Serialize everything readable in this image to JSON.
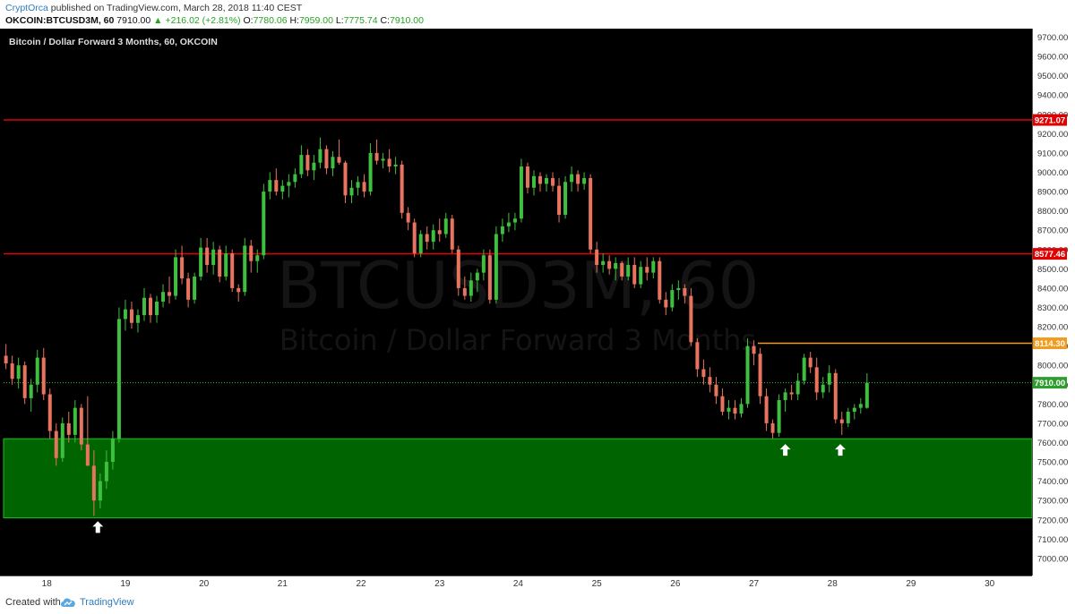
{
  "header": {
    "author": "CryptOrca",
    "published_text": "published on TradingView.com, March 28, 2018 11:40 CEST",
    "symbol": "OKCOIN:BTCUSD3M, 60",
    "last": "7910.00",
    "change": "+216.02 (+2.81%)",
    "o_label": "O:",
    "o_value": "7780.06",
    "h_label": "H:",
    "h_value": "7959.00",
    "l_label": "L:",
    "l_value": "7775.74",
    "c_label": "C:",
    "c_value": "7910.00"
  },
  "footer": {
    "created_label": "Created with",
    "brand": "TradingView"
  },
  "colors": {
    "up": "#3fbf3f",
    "down": "#e8735f",
    "support_zone": "#006400",
    "resistance": "#e00000",
    "orange_line": "#f29b1d",
    "background": "#000000"
  },
  "chart_data": {
    "type": "candlestick",
    "title": "Bitcoin / Dollar Forward 3 Months, 60, OKCOIN",
    "watermark_symbol": "BTCUSD3M, 60",
    "watermark_name": "Bitcoin / Dollar Forward 3 Months",
    "ylim": [
      6900,
      9750
    ],
    "xlim": [
      17.45,
      30.5
    ],
    "y_ticks": [
      7000,
      7100,
      7200,
      7300,
      7400,
      7500,
      7600,
      7700,
      7800,
      7900,
      8000,
      8100,
      8200,
      8300,
      8400,
      8500,
      8600,
      8700,
      8800,
      8900,
      9000,
      9100,
      9200,
      9300,
      9400,
      9500,
      9600,
      9700
    ],
    "y_tick_suffix": ".00",
    "x_ticks": [
      {
        "x": 18,
        "label": "18"
      },
      {
        "x": 19,
        "label": "19"
      },
      {
        "x": 20,
        "label": "20"
      },
      {
        "x": 21,
        "label": "21"
      },
      {
        "x": 22,
        "label": "22"
      },
      {
        "x": 23,
        "label": "23"
      },
      {
        "x": 24,
        "label": "24"
      },
      {
        "x": 25,
        "label": "25"
      },
      {
        "x": 26,
        "label": "26"
      },
      {
        "x": 27,
        "label": "27"
      },
      {
        "x": 28,
        "label": "28"
      },
      {
        "x": 29,
        "label": "29"
      },
      {
        "x": 30,
        "label": "30"
      }
    ],
    "horizontal_lines": [
      {
        "value": 9271.07,
        "label": "9271.07",
        "color": "#e00000",
        "x_from": 17.45
      },
      {
        "value": 8577.46,
        "label": "8577.46",
        "color": "#e00000",
        "x_from": 17.45
      },
      {
        "value": 8114.3,
        "label": "8114.30",
        "color": "#f29b1d",
        "x_from": 27.05
      }
    ],
    "last_price": {
      "value": 7910.0,
      "label": "7910.00"
    },
    "zone": {
      "from": 7210,
      "to": 7620,
      "color": "#006400"
    },
    "arrows": [
      {
        "x": 18.65,
        "y": 7160
      },
      {
        "x": 27.4,
        "y": 7560
      },
      {
        "x": 28.1,
        "y": 7560
      }
    ],
    "candles": [
      {
        "x": 17.48,
        "o": 8050,
        "h": 8110,
        "l": 7980,
        "c": 8010
      },
      {
        "x": 17.56,
        "o": 8010,
        "h": 8050,
        "l": 7900,
        "c": 7930
      },
      {
        "x": 17.64,
        "o": 7930,
        "h": 8040,
        "l": 7880,
        "c": 8000
      },
      {
        "x": 17.72,
        "o": 8000,
        "h": 8020,
        "l": 7800,
        "c": 7830
      },
      {
        "x": 17.8,
        "o": 7830,
        "h": 7930,
        "l": 7760,
        "c": 7900
      },
      {
        "x": 17.88,
        "o": 7900,
        "h": 8080,
        "l": 7860,
        "c": 8040
      },
      {
        "x": 17.96,
        "o": 8040,
        "h": 8090,
        "l": 7820,
        "c": 7850
      },
      {
        "x": 18.04,
        "o": 7850,
        "h": 7880,
        "l": 7620,
        "c": 7660
      },
      {
        "x": 18.12,
        "o": 7660,
        "h": 7700,
        "l": 7480,
        "c": 7520
      },
      {
        "x": 18.2,
        "o": 7520,
        "h": 7730,
        "l": 7500,
        "c": 7700
      },
      {
        "x": 18.28,
        "o": 7700,
        "h": 7760,
        "l": 7600,
        "c": 7640
      },
      {
        "x": 18.36,
        "o": 7640,
        "h": 7820,
        "l": 7600,
        "c": 7780
      },
      {
        "x": 18.44,
        "o": 7780,
        "h": 7800,
        "l": 7560,
        "c": 7590
      },
      {
        "x": 18.52,
        "o": 7590,
        "h": 7840,
        "l": 7480,
        "c": 7480
      },
      {
        "x": 18.6,
        "o": 7480,
        "h": 7560,
        "l": 7220,
        "c": 7300
      },
      {
        "x": 18.68,
        "o": 7300,
        "h": 7440,
        "l": 7260,
        "c": 7400
      },
      {
        "x": 18.76,
        "o": 7400,
        "h": 7560,
        "l": 7360,
        "c": 7500
      },
      {
        "x": 18.84,
        "o": 7500,
        "h": 7660,
        "l": 7460,
        "c": 7620
      },
      {
        "x": 18.92,
        "o": 7620,
        "h": 8300,
        "l": 7600,
        "c": 8240
      },
      {
        "x": 19.0,
        "o": 8240,
        "h": 8340,
        "l": 8180,
        "c": 8290
      },
      {
        "x": 19.08,
        "o": 8290,
        "h": 8330,
        "l": 8190,
        "c": 8220
      },
      {
        "x": 19.16,
        "o": 8220,
        "h": 8290,
        "l": 8170,
        "c": 8260
      },
      {
        "x": 19.24,
        "o": 8260,
        "h": 8400,
        "l": 8230,
        "c": 8350
      },
      {
        "x": 19.32,
        "o": 8350,
        "h": 8370,
        "l": 8220,
        "c": 8260
      },
      {
        "x": 19.4,
        "o": 8260,
        "h": 8360,
        "l": 8220,
        "c": 8330
      },
      {
        "x": 19.48,
        "o": 8330,
        "h": 8420,
        "l": 8300,
        "c": 8380
      },
      {
        "x": 19.56,
        "o": 8380,
        "h": 8460,
        "l": 8320,
        "c": 8360
      },
      {
        "x": 19.64,
        "o": 8360,
        "h": 8600,
        "l": 8340,
        "c": 8560
      },
      {
        "x": 19.72,
        "o": 8560,
        "h": 8620,
        "l": 8420,
        "c": 8450
      },
      {
        "x": 19.8,
        "o": 8450,
        "h": 8480,
        "l": 8300,
        "c": 8340
      },
      {
        "x": 19.88,
        "o": 8340,
        "h": 8480,
        "l": 8320,
        "c": 8460
      },
      {
        "x": 19.96,
        "o": 8460,
        "h": 8660,
        "l": 8440,
        "c": 8610
      },
      {
        "x": 20.04,
        "o": 8610,
        "h": 8660,
        "l": 8480,
        "c": 8520
      },
      {
        "x": 20.12,
        "o": 8520,
        "h": 8640,
        "l": 8470,
        "c": 8600
      },
      {
        "x": 20.2,
        "o": 8600,
        "h": 8620,
        "l": 8430,
        "c": 8460
      },
      {
        "x": 20.28,
        "o": 8460,
        "h": 8620,
        "l": 8440,
        "c": 8580
      },
      {
        "x": 20.36,
        "o": 8580,
        "h": 8600,
        "l": 8380,
        "c": 8400
      },
      {
        "x": 20.44,
        "o": 8400,
        "h": 8420,
        "l": 8330,
        "c": 8380
      },
      {
        "x": 20.52,
        "o": 8380,
        "h": 8660,
        "l": 8360,
        "c": 8620
      },
      {
        "x": 20.6,
        "o": 8620,
        "h": 8650,
        "l": 8480,
        "c": 8540
      },
      {
        "x": 20.68,
        "o": 8540,
        "h": 8600,
        "l": 8480,
        "c": 8570
      },
      {
        "x": 20.76,
        "o": 8570,
        "h": 8940,
        "l": 8550,
        "c": 8900
      },
      {
        "x": 20.84,
        "o": 8900,
        "h": 9000,
        "l": 8860,
        "c": 8960
      },
      {
        "x": 20.92,
        "o": 8960,
        "h": 9020,
        "l": 8880,
        "c": 8900
      },
      {
        "x": 21.0,
        "o": 8900,
        "h": 8960,
        "l": 8860,
        "c": 8930
      },
      {
        "x": 21.08,
        "o": 8930,
        "h": 8990,
        "l": 8870,
        "c": 8950
      },
      {
        "x": 21.16,
        "o": 8950,
        "h": 9020,
        "l": 8920,
        "c": 8990
      },
      {
        "x": 21.24,
        "o": 8990,
        "h": 9140,
        "l": 8970,
        "c": 9090
      },
      {
        "x": 21.32,
        "o": 9090,
        "h": 9120,
        "l": 8980,
        "c": 9010
      },
      {
        "x": 21.4,
        "o": 9010,
        "h": 9090,
        "l": 8960,
        "c": 9050
      },
      {
        "x": 21.48,
        "o": 9050,
        "h": 9180,
        "l": 9020,
        "c": 9120
      },
      {
        "x": 21.56,
        "o": 9120,
        "h": 9140,
        "l": 8990,
        "c": 9020
      },
      {
        "x": 21.64,
        "o": 9020,
        "h": 9110,
        "l": 8980,
        "c": 9080
      },
      {
        "x": 21.72,
        "o": 9080,
        "h": 9170,
        "l": 9040,
        "c": 9050
      },
      {
        "x": 21.8,
        "o": 9050,
        "h": 9060,
        "l": 8840,
        "c": 8880
      },
      {
        "x": 21.88,
        "o": 8880,
        "h": 8960,
        "l": 8840,
        "c": 8920
      },
      {
        "x": 21.96,
        "o": 8920,
        "h": 8980,
        "l": 8880,
        "c": 8950
      },
      {
        "x": 22.04,
        "o": 8950,
        "h": 8990,
        "l": 8870,
        "c": 8900
      },
      {
        "x": 22.12,
        "o": 8900,
        "h": 9150,
        "l": 8880,
        "c": 9100
      },
      {
        "x": 22.2,
        "o": 9100,
        "h": 9170,
        "l": 9040,
        "c": 9060
      },
      {
        "x": 22.28,
        "o": 9060,
        "h": 9100,
        "l": 9020,
        "c": 9070
      },
      {
        "x": 22.36,
        "o": 9070,
        "h": 9120,
        "l": 9000,
        "c": 9030
      },
      {
        "x": 22.44,
        "o": 9030,
        "h": 9080,
        "l": 8990,
        "c": 9040
      },
      {
        "x": 22.52,
        "o": 9040,
        "h": 9060,
        "l": 8760,
        "c": 8790
      },
      {
        "x": 22.6,
        "o": 8790,
        "h": 8820,
        "l": 8700,
        "c": 8740
      },
      {
        "x": 22.68,
        "o": 8740,
        "h": 8760,
        "l": 8560,
        "c": 8580
      },
      {
        "x": 22.76,
        "o": 8580,
        "h": 8700,
        "l": 8560,
        "c": 8680
      },
      {
        "x": 22.84,
        "o": 8680,
        "h": 8720,
        "l": 8600,
        "c": 8640
      },
      {
        "x": 22.92,
        "o": 8640,
        "h": 8730,
        "l": 8600,
        "c": 8700
      },
      {
        "x": 23.0,
        "o": 8700,
        "h": 8760,
        "l": 8640,
        "c": 8680
      },
      {
        "x": 23.08,
        "o": 8680,
        "h": 8790,
        "l": 8660,
        "c": 8760
      },
      {
        "x": 23.16,
        "o": 8760,
        "h": 8780,
        "l": 8580,
        "c": 8600
      },
      {
        "x": 23.24,
        "o": 8600,
        "h": 8620,
        "l": 8360,
        "c": 8400
      },
      {
        "x": 23.32,
        "o": 8400,
        "h": 8460,
        "l": 8340,
        "c": 8360
      },
      {
        "x": 23.4,
        "o": 8360,
        "h": 8480,
        "l": 8330,
        "c": 8440
      },
      {
        "x": 23.48,
        "o": 8440,
        "h": 8500,
        "l": 8380,
        "c": 8480
      },
      {
        "x": 23.56,
        "o": 8480,
        "h": 8600,
        "l": 8440,
        "c": 8570
      },
      {
        "x": 23.64,
        "o": 8570,
        "h": 8600,
        "l": 8320,
        "c": 8340
      },
      {
        "x": 23.72,
        "o": 8340,
        "h": 8720,
        "l": 8320,
        "c": 8680
      },
      {
        "x": 23.8,
        "o": 8680,
        "h": 8760,
        "l": 8640,
        "c": 8720
      },
      {
        "x": 23.88,
        "o": 8720,
        "h": 8790,
        "l": 8690,
        "c": 8740
      },
      {
        "x": 23.96,
        "o": 8740,
        "h": 8790,
        "l": 8700,
        "c": 8760
      },
      {
        "x": 24.04,
        "o": 8760,
        "h": 9070,
        "l": 8740,
        "c": 9030
      },
      {
        "x": 24.12,
        "o": 9030,
        "h": 9050,
        "l": 8890,
        "c": 8920
      },
      {
        "x": 24.2,
        "o": 8920,
        "h": 9010,
        "l": 8880,
        "c": 8980
      },
      {
        "x": 24.28,
        "o": 8980,
        "h": 9000,
        "l": 8900,
        "c": 8940
      },
      {
        "x": 24.36,
        "o": 8940,
        "h": 8990,
        "l": 8900,
        "c": 8970
      },
      {
        "x": 24.44,
        "o": 8970,
        "h": 9000,
        "l": 8900,
        "c": 8930
      },
      {
        "x": 24.52,
        "o": 8930,
        "h": 8970,
        "l": 8740,
        "c": 8780
      },
      {
        "x": 24.6,
        "o": 8780,
        "h": 8980,
        "l": 8760,
        "c": 8950
      },
      {
        "x": 24.68,
        "o": 8950,
        "h": 9030,
        "l": 8900,
        "c": 8990
      },
      {
        "x": 24.76,
        "o": 8990,
        "h": 9010,
        "l": 8900,
        "c": 8940
      },
      {
        "x": 24.84,
        "o": 8940,
        "h": 9000,
        "l": 8910,
        "c": 8970
      },
      {
        "x": 24.92,
        "o": 8970,
        "h": 8990,
        "l": 8580,
        "c": 8600
      },
      {
        "x": 25.0,
        "o": 8600,
        "h": 8640,
        "l": 8480,
        "c": 8520
      },
      {
        "x": 25.08,
        "o": 8520,
        "h": 8580,
        "l": 8480,
        "c": 8540
      },
      {
        "x": 25.16,
        "o": 8540,
        "h": 8570,
        "l": 8470,
        "c": 8500
      },
      {
        "x": 25.24,
        "o": 8500,
        "h": 8560,
        "l": 8440,
        "c": 8530
      },
      {
        "x": 25.32,
        "o": 8530,
        "h": 8540,
        "l": 8440,
        "c": 8460
      },
      {
        "x": 25.4,
        "o": 8460,
        "h": 8560,
        "l": 8440,
        "c": 8520
      },
      {
        "x": 25.48,
        "o": 8520,
        "h": 8560,
        "l": 8400,
        "c": 8420
      },
      {
        "x": 25.56,
        "o": 8420,
        "h": 8540,
        "l": 8400,
        "c": 8510
      },
      {
        "x": 25.64,
        "o": 8510,
        "h": 8560,
        "l": 8440,
        "c": 8480
      },
      {
        "x": 25.72,
        "o": 8480,
        "h": 8560,
        "l": 8450,
        "c": 8540
      },
      {
        "x": 25.8,
        "o": 8540,
        "h": 8560,
        "l": 8320,
        "c": 8340
      },
      {
        "x": 25.88,
        "o": 8340,
        "h": 8380,
        "l": 8260,
        "c": 8300
      },
      {
        "x": 25.96,
        "o": 8300,
        "h": 8420,
        "l": 8280,
        "c": 8390
      },
      {
        "x": 26.04,
        "o": 8390,
        "h": 8440,
        "l": 8340,
        "c": 8400
      },
      {
        "x": 26.12,
        "o": 8400,
        "h": 8420,
        "l": 8320,
        "c": 8360
      },
      {
        "x": 26.2,
        "o": 8360,
        "h": 8400,
        "l": 8100,
        "c": 8120
      },
      {
        "x": 26.28,
        "o": 8120,
        "h": 8140,
        "l": 7940,
        "c": 7980
      },
      {
        "x": 26.36,
        "o": 7980,
        "h": 8030,
        "l": 7900,
        "c": 7940
      },
      {
        "x": 26.44,
        "o": 7940,
        "h": 7990,
        "l": 7860,
        "c": 7900
      },
      {
        "x": 26.52,
        "o": 7900,
        "h": 7940,
        "l": 7800,
        "c": 7840
      },
      {
        "x": 26.6,
        "o": 7840,
        "h": 7880,
        "l": 7740,
        "c": 7760
      },
      {
        "x": 26.68,
        "o": 7760,
        "h": 7820,
        "l": 7720,
        "c": 7780
      },
      {
        "x": 26.76,
        "o": 7780,
        "h": 7820,
        "l": 7720,
        "c": 7750
      },
      {
        "x": 26.84,
        "o": 7750,
        "h": 7830,
        "l": 7730,
        "c": 7800
      },
      {
        "x": 26.92,
        "o": 7800,
        "h": 8140,
        "l": 7780,
        "c": 8100
      },
      {
        "x": 27.0,
        "o": 8100,
        "h": 8130,
        "l": 8000,
        "c": 8060
      },
      {
        "x": 27.08,
        "o": 8060,
        "h": 8090,
        "l": 7800,
        "c": 7840
      },
      {
        "x": 27.16,
        "o": 7840,
        "h": 7880,
        "l": 7660,
        "c": 7700
      },
      {
        "x": 27.24,
        "o": 7700,
        "h": 7720,
        "l": 7620,
        "c": 7650
      },
      {
        "x": 27.32,
        "o": 7650,
        "h": 7850,
        "l": 7630,
        "c": 7820
      },
      {
        "x": 27.4,
        "o": 7820,
        "h": 7880,
        "l": 7760,
        "c": 7860
      },
      {
        "x": 27.48,
        "o": 7860,
        "h": 7900,
        "l": 7820,
        "c": 7850
      },
      {
        "x": 27.56,
        "o": 7850,
        "h": 7960,
        "l": 7820,
        "c": 7920
      },
      {
        "x": 27.64,
        "o": 7920,
        "h": 8060,
        "l": 7900,
        "c": 8040
      },
      {
        "x": 27.72,
        "o": 8040,
        "h": 8070,
        "l": 7960,
        "c": 7990
      },
      {
        "x": 27.8,
        "o": 7990,
        "h": 8040,
        "l": 7820,
        "c": 7860
      },
      {
        "x": 27.88,
        "o": 7860,
        "h": 7940,
        "l": 7830,
        "c": 7900
      },
      {
        "x": 27.96,
        "o": 7900,
        "h": 8000,
        "l": 7860,
        "c": 7960
      },
      {
        "x": 28.04,
        "o": 7960,
        "h": 7980,
        "l": 7700,
        "c": 7720
      },
      {
        "x": 28.12,
        "o": 7720,
        "h": 7760,
        "l": 7640,
        "c": 7700
      },
      {
        "x": 28.2,
        "o": 7700,
        "h": 7780,
        "l": 7680,
        "c": 7760
      },
      {
        "x": 28.28,
        "o": 7760,
        "h": 7800,
        "l": 7720,
        "c": 7780
      },
      {
        "x": 28.36,
        "o": 7780,
        "h": 7830,
        "l": 7750,
        "c": 7800
      },
      {
        "x": 28.44,
        "o": 7780,
        "h": 7959,
        "l": 7775,
        "c": 7910
      }
    ]
  }
}
